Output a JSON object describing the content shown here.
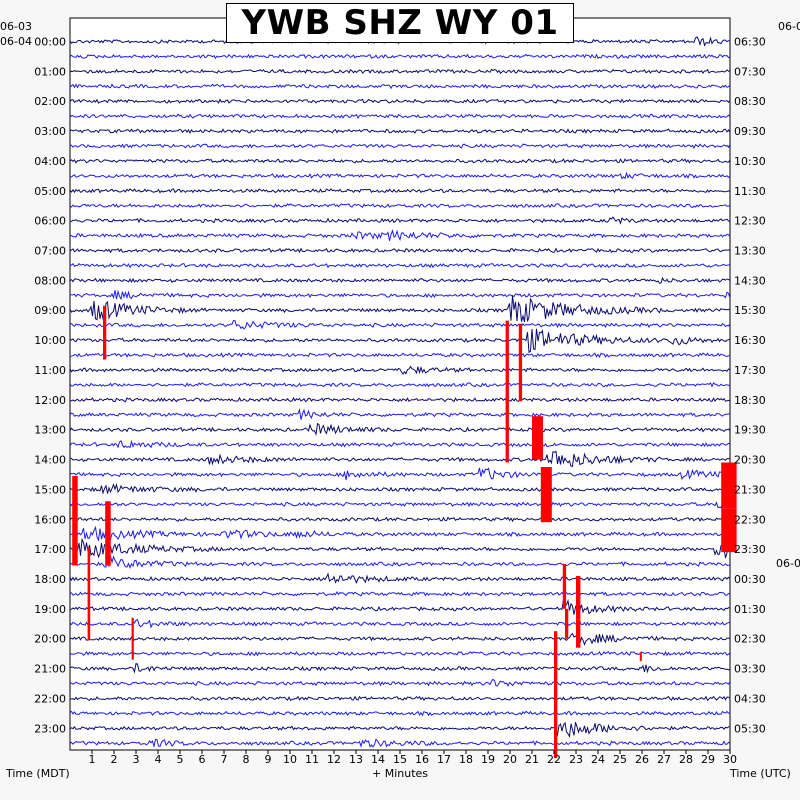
{
  "title": "YWB SHZ WY 01",
  "x_axis_label": "+ Minutes",
  "left_axis_title": "Time (MDT)",
  "right_axis_title": "Time (UTC)",
  "left_date_labels": [
    "06-03",
    "06-04"
  ],
  "right_date_labels": [
    "06-0",
    "06-0"
  ],
  "colors": {
    "trace_a": "#0a0a6e",
    "trace_b": "#1c1cf0",
    "clip": "#ff0000",
    "background": "#f7f7f7",
    "plot_background": "#ffffff"
  },
  "chart_data": {
    "type": "helicorder",
    "title": "YWB SHZ WY 01",
    "xlabel": "+ Minutes",
    "xlim": [
      0,
      30
    ],
    "x_ticks": [
      1,
      2,
      3,
      4,
      5,
      6,
      7,
      8,
      9,
      10,
      11,
      12,
      13,
      14,
      15,
      16,
      17,
      18,
      19,
      20,
      21,
      22,
      23,
      24,
      25,
      26,
      27,
      28,
      29,
      30
    ],
    "rows_per_hour": 2,
    "row_count": 48,
    "left_ticks": [
      "00:00",
      "01:00",
      "02:00",
      "03:00",
      "04:00",
      "05:00",
      "06:00",
      "07:00",
      "08:00",
      "09:00",
      "10:00",
      "11:00",
      "12:00",
      "13:00",
      "14:00",
      "15:00",
      "16:00",
      "17:00",
      "18:00",
      "19:00",
      "20:00",
      "21:00",
      "22:00",
      "23:00"
    ],
    "right_ticks": [
      "06:30",
      "07:30",
      "08:30",
      "09:30",
      "10:30",
      "11:30",
      "12:30",
      "13:30",
      "14:30",
      "15:30",
      "16:30",
      "17:30",
      "18:30",
      "19:30",
      "20:30",
      "21:30",
      "22:30",
      "23:30",
      "00:30",
      "01:30",
      "02:30",
      "03:30",
      "04:30",
      "05:30"
    ],
    "left_timezone": "MDT",
    "right_timezone": "UTC",
    "events": [
      {
        "row": 0,
        "minute": 28.4,
        "amp": 0.6,
        "dur": 0.8
      },
      {
        "row": 9,
        "minute": 24.9,
        "amp": 0.3,
        "dur": 1.0
      },
      {
        "row": 12,
        "minute": 24.5,
        "amp": 0.5,
        "dur": 0.6
      },
      {
        "row": 13,
        "minute": 12.8,
        "amp": 0.4,
        "dur": 2.0
      },
      {
        "row": 13,
        "minute": 14.5,
        "amp": 0.4,
        "dur": 1.6
      },
      {
        "row": 16,
        "minute": 26.6,
        "amp": 0.4,
        "dur": 0.4
      },
      {
        "row": 17,
        "minute": 2.0,
        "amp": 0.5,
        "dur": 1.0
      },
      {
        "row": 17,
        "minute": 29.8,
        "amp": 0.6,
        "dur": 0.6
      },
      {
        "row": 18,
        "minute": 1.0,
        "amp": 1.6,
        "dur": 1.6
      },
      {
        "row": 18,
        "minute": 19.9,
        "amp": 2.2,
        "dur": 2.4
      },
      {
        "row": 19,
        "minute": 7.4,
        "amp": 0.6,
        "dur": 1.6
      },
      {
        "row": 20,
        "minute": 20.6,
        "amp": 1.8,
        "dur": 2.2
      },
      {
        "row": 20,
        "minute": 27.3,
        "amp": 0.8,
        "dur": 0.8
      },
      {
        "row": 22,
        "minute": 15.1,
        "amp": 0.6,
        "dur": 1.0
      },
      {
        "row": 25,
        "minute": 10.4,
        "amp": 0.6,
        "dur": 0.8
      },
      {
        "row": 26,
        "minute": 10.9,
        "amp": 0.8,
        "dur": 1.4
      },
      {
        "row": 27,
        "minute": 2.2,
        "amp": 0.5,
        "dur": 1.4
      },
      {
        "row": 28,
        "minute": 6.3,
        "amp": 0.6,
        "dur": 1.6
      },
      {
        "row": 28,
        "minute": 21.7,
        "amp": 1.6,
        "dur": 1.8
      },
      {
        "row": 29,
        "minute": 12.5,
        "amp": 0.6,
        "dur": 1.0
      },
      {
        "row": 29,
        "minute": 18.6,
        "amp": 1.0,
        "dur": 1.0
      },
      {
        "row": 29,
        "minute": 27.8,
        "amp": 0.5,
        "dur": 1.4
      },
      {
        "row": 30,
        "minute": 1.3,
        "amp": 0.6,
        "dur": 2.0
      },
      {
        "row": 31,
        "minute": 29.4,
        "amp": 0.6,
        "dur": 0.6
      },
      {
        "row": 33,
        "minute": 0.6,
        "amp": 1.0,
        "dur": 2.0
      },
      {
        "row": 33,
        "minute": 7.0,
        "amp": 0.6,
        "dur": 1.6
      },
      {
        "row": 33,
        "minute": 10.2,
        "amp": 0.4,
        "dur": 1.0
      },
      {
        "row": 34,
        "minute": 0.4,
        "amp": 1.4,
        "dur": 2.2
      },
      {
        "row": 34,
        "minute": 29.3,
        "amp": 1.6,
        "dur": 1.4
      },
      {
        "row": 35,
        "minute": 1.6,
        "amp": 1.0,
        "dur": 1.4
      },
      {
        "row": 36,
        "minute": 11.5,
        "amp": 0.8,
        "dur": 1.6
      },
      {
        "row": 38,
        "minute": 22.4,
        "amp": 1.2,
        "dur": 1.2
      },
      {
        "row": 39,
        "minute": 2.8,
        "amp": 0.6,
        "dur": 1.0
      },
      {
        "row": 40,
        "minute": 22.8,
        "amp": 1.0,
        "dur": 1.4
      },
      {
        "row": 42,
        "minute": 2.9,
        "amp": 0.6,
        "dur": 0.6
      },
      {
        "row": 42,
        "minute": 25.9,
        "amp": 0.6,
        "dur": 0.6
      },
      {
        "row": 43,
        "minute": 19.0,
        "amp": 0.5,
        "dur": 1.0
      },
      {
        "row": 46,
        "minute": 22.1,
        "amp": 1.6,
        "dur": 1.6
      },
      {
        "row": 47,
        "minute": 3.6,
        "amp": 0.5,
        "dur": 1.0
      },
      {
        "row": 47,
        "minute": 13.2,
        "amp": 0.5,
        "dur": 1.6
      }
    ],
    "clipped_segments": [
      {
        "start_row": 17.7,
        "end_row": 21.3,
        "minute": 1.5,
        "width": 0.15
      },
      {
        "start_row": 18.7,
        "end_row": 28.2,
        "minute": 19.8,
        "width": 0.15
      },
      {
        "start_row": 18.9,
        "end_row": 24.1,
        "minute": 20.4,
        "width": 0.15
      },
      {
        "start_row": 25.1,
        "end_row": 28.0,
        "minute": 21.0,
        "width": 0.5
      },
      {
        "start_row": 28.5,
        "end_row": 32.2,
        "minute": 21.4,
        "width": 0.5
      },
      {
        "start_row": 28.2,
        "end_row": 31.3,
        "minute": 29.6,
        "width": 0.7
      },
      {
        "start_row": 31.3,
        "end_row": 34.2,
        "minute": 29.6,
        "width": 0.7
      },
      {
        "start_row": 29.1,
        "end_row": 32.2,
        "minute": 0.1,
        "width": 0.25
      },
      {
        "start_row": 32.2,
        "end_row": 35.1,
        "minute": 0.1,
        "width": 0.25
      },
      {
        "start_row": 30.8,
        "end_row": 33.2,
        "minute": 1.6,
        "width": 0.25
      },
      {
        "start_row": 33.2,
        "end_row": 35.1,
        "minute": 1.6,
        "width": 0.25
      },
      {
        "start_row": 33.9,
        "end_row": 40.1,
        "minute": 0.8,
        "width": 0.12
      },
      {
        "start_row": 35.0,
        "end_row": 38.0,
        "minute": 22.4,
        "width": 0.15
      },
      {
        "start_row": 38.0,
        "end_row": 40.0,
        "minute": 22.5,
        "width": 0.15
      },
      {
        "start_row": 35.8,
        "end_row": 38.7,
        "minute": 23.0,
        "width": 0.2
      },
      {
        "start_row": 38.7,
        "end_row": 40.6,
        "minute": 23.0,
        "width": 0.2
      },
      {
        "start_row": 39.5,
        "end_row": 48.0,
        "minute": 22.0,
        "width": 0.15
      },
      {
        "start_row": 38.6,
        "end_row": 41.4,
        "minute": 2.8,
        "width": 0.1
      },
      {
        "start_row": 40.9,
        "end_row": 41.5,
        "minute": 25.9,
        "width": 0.08
      }
    ]
  }
}
